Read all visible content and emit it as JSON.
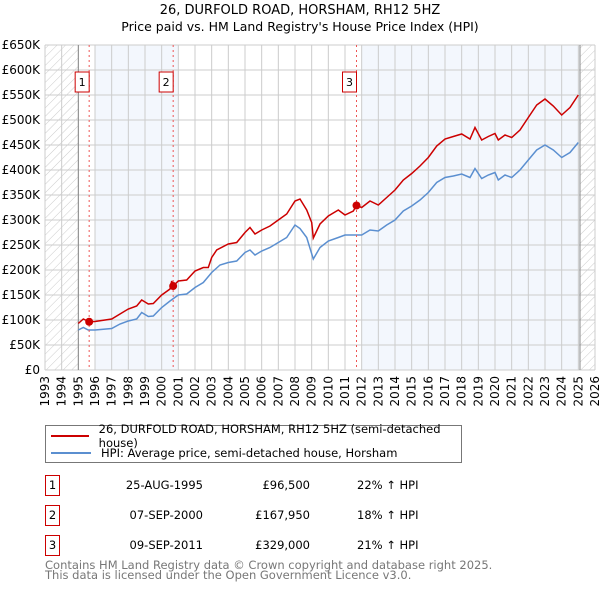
{
  "chart_data": {
    "type": "line",
    "title": "26, DURFOLD ROAD, HORSHAM, RH12 5HZ",
    "subtitle": "Price paid vs. HM Land Registry's House Price Index (HPI)",
    "xlim": [
      1993,
      2026
    ],
    "ylim": [
      0,
      650000
    ],
    "x_ticks": [
      "1993",
      "1994",
      "1995",
      "1996",
      "1997",
      "1998",
      "1999",
      "2000",
      "2001",
      "2002",
      "2003",
      "2004",
      "2005",
      "2006",
      "2007",
      "2008",
      "2009",
      "2010",
      "2011",
      "2012",
      "2013",
      "2014",
      "2015",
      "2016",
      "2017",
      "2018",
      "2019",
      "2020",
      "2021",
      "2022",
      "2023",
      "2024",
      "2025",
      "2026"
    ],
    "y_ticks": [
      "£0",
      "£50K",
      "£100K",
      "£150K",
      "£200K",
      "£250K",
      "£300K",
      "£350K",
      "£400K",
      "£450K",
      "£500K",
      "£550K",
      "£600K",
      "£650K"
    ],
    "grid": true,
    "data_range": [
      1995,
      2025.1
    ],
    "shaded_bands": [
      [
        1996,
        2001
      ],
      [
        2012,
        2025.1
      ]
    ],
    "series": [
      {
        "name": "26, DURFOLD ROAD, HORSHAM, RH12 5HZ (semi-detached house)",
        "color": "#cc0000",
        "x": [
          1995,
          1995.3,
          1995.65,
          1996,
          1997,
          1997.5,
          1998,
          1998.5,
          1998.8,
          1999.2,
          1999.5,
          2000,
          2000.5,
          2000.6,
          2000.69,
          2001,
          2001.5,
          2002,
          2002.5,
          2002.8,
          2003,
          2003.3,
          2004,
          2004.5,
          2005,
          2005.3,
          2005.6,
          2006,
          2006.5,
          2007,
          2007.5,
          2008,
          2008.3,
          2008.7,
          2009,
          2009.1,
          2009.5,
          2010,
          2010.6,
          2011,
          2011.5,
          2011.69,
          2012,
          2012.5,
          2013,
          2013.5,
          2014,
          2014.5,
          2015,
          2015.5,
          2016,
          2016.5,
          2017,
          2017.5,
          2018,
          2018.5,
          2018.8,
          2019.2,
          2019.6,
          2020,
          2020.2,
          2020.6,
          2021,
          2021.5,
          2022,
          2022.5,
          2023,
          2023.5,
          2024,
          2024.5,
          2025
        ],
        "y": [
          93000,
          102000,
          96500,
          97000,
          102000,
          112000,
          122000,
          128000,
          140000,
          132000,
          133000,
          150000,
          162000,
          178000,
          167950,
          178000,
          180000,
          198000,
          205000,
          205000,
          225000,
          240000,
          252000,
          255000,
          275000,
          285000,
          272000,
          280000,
          288000,
          300000,
          312000,
          338000,
          342000,
          320000,
          295000,
          264000,
          292000,
          308000,
          320000,
          310000,
          318000,
          329000,
          325000,
          338000,
          330000,
          345000,
          360000,
          380000,
          393000,
          408000,
          425000,
          448000,
          462000,
          467000,
          472000,
          462000,
          485000,
          460000,
          467000,
          473000,
          460000,
          470000,
          465000,
          480000,
          505000,
          530000,
          542000,
          528000,
          510000,
          525000,
          550000
        ]
      },
      {
        "name": "HPI: Average price, semi-detached house, Horsham",
        "color": "#5b8fd0",
        "x": [
          1995,
          1995.3,
          1995.6,
          1996,
          1997,
          1997.5,
          1998,
          1998.5,
          1998.8,
          1999.2,
          1999.5,
          2000,
          2000.5,
          2001,
          2001.5,
          2002,
          2002.5,
          2003,
          2003.5,
          2004,
          2004.5,
          2005,
          2005.3,
          2005.6,
          2006,
          2006.5,
          2007,
          2007.5,
          2008,
          2008.3,
          2008.7,
          2009.1,
          2009.5,
          2010,
          2010.6,
          2011,
          2011.7,
          2012,
          2012.5,
          2013,
          2013.5,
          2014,
          2014.5,
          2015,
          2015.5,
          2016,
          2016.5,
          2017,
          2017.5,
          2018,
          2018.5,
          2018.8,
          2019.2,
          2019.6,
          2020,
          2020.2,
          2020.6,
          2021,
          2021.5,
          2022,
          2022.5,
          2023,
          2023.5,
          2024,
          2024.5,
          2025
        ],
        "y": [
          80000,
          85000,
          80000,
          80000,
          83000,
          92000,
          98000,
          102000,
          115000,
          107000,
          108000,
          125000,
          138000,
          150000,
          152000,
          165000,
          175000,
          195000,
          210000,
          215000,
          218000,
          235000,
          240000,
          230000,
          238000,
          245000,
          255000,
          265000,
          290000,
          283000,
          265000,
          222000,
          245000,
          258000,
          265000,
          270000,
          270000,
          270000,
          280000,
          278000,
          290000,
          300000,
          318000,
          328000,
          340000,
          355000,
          375000,
          385000,
          388000,
          392000,
          385000,
          403000,
          383000,
          390000,
          395000,
          380000,
          390000,
          385000,
          400000,
          420000,
          440000,
          450000,
          440000,
          425000,
          435000,
          455000
        ]
      }
    ],
    "sales": [
      {
        "label": "1",
        "x": 1995.65,
        "price": 96500
      },
      {
        "label": "2",
        "x": 2000.69,
        "price": 167950
      },
      {
        "label": "3",
        "x": 2011.69,
        "price": 329000
      }
    ]
  },
  "legend": {
    "red": "26, DURFOLD ROAD, HORSHAM, RH12 5HZ (semi-detached house)",
    "blue": "HPI: Average price, semi-detached house, Horsham"
  },
  "table": [
    {
      "num": "1",
      "date": "25-AUG-1995",
      "price": "£96,500",
      "hpi": "22% ↑ HPI"
    },
    {
      "num": "2",
      "date": "07-SEP-2000",
      "price": "£167,950",
      "hpi": "18% ↑ HPI"
    },
    {
      "num": "3",
      "date": "09-SEP-2011",
      "price": "£329,000",
      "hpi": "21% ↑ HPI"
    }
  ],
  "footer": {
    "line1": "Contains HM Land Registry data © Crown copyright and database right 2025.",
    "line2": "This data is licensed under the Open Government Licence v3.0."
  }
}
